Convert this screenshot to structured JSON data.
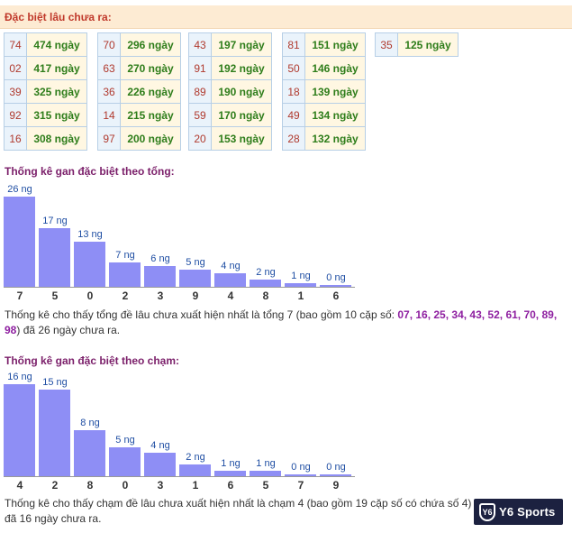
{
  "header": {
    "title": "Đặc biệt lâu chưa ra:"
  },
  "gan_groups": [
    [
      {
        "num": "74",
        "days": "474 ngày"
      },
      {
        "num": "02",
        "days": "417 ngày"
      },
      {
        "num": "39",
        "days": "325 ngày"
      },
      {
        "num": "92",
        "days": "315 ngày"
      },
      {
        "num": "16",
        "days": "308 ngày"
      }
    ],
    [
      {
        "num": "70",
        "days": "296 ngày"
      },
      {
        "num": "63",
        "days": "270 ngày"
      },
      {
        "num": "36",
        "days": "226 ngày"
      },
      {
        "num": "14",
        "days": "215 ngày"
      },
      {
        "num": "97",
        "days": "200 ngày"
      }
    ],
    [
      {
        "num": "43",
        "days": "197 ngày"
      },
      {
        "num": "91",
        "days": "192 ngày"
      },
      {
        "num": "89",
        "days": "190 ngày"
      },
      {
        "num": "59",
        "days": "170 ngày"
      },
      {
        "num": "20",
        "days": "153 ngày"
      }
    ],
    [
      {
        "num": "81",
        "days": "151 ngày"
      },
      {
        "num": "50",
        "days": "146 ngày"
      },
      {
        "num": "18",
        "days": "139 ngày"
      },
      {
        "num": "49",
        "days": "134 ngày"
      },
      {
        "num": "28",
        "days": "132 ngày"
      }
    ],
    [
      {
        "num": "35",
        "days": "125 ngày"
      }
    ]
  ],
  "sum_section": {
    "title": "Thống kê gan đặc biệt theo tổng:",
    "desc_prefix": "Thống kê cho thấy tổng đề lâu chưa xuất hiện nhất là tổng 7 (bao gồm 10 cặp số: ",
    "desc_pairs": "07, 16, 25, 34, 43, 52, 61, 70, 89, 98",
    "desc_suffix": ") đã 26 ngày chưa ra."
  },
  "touch_section": {
    "title": "Thống kê gan đặc biệt theo chạm:",
    "desc": "Thống kê cho thấy chạm đề lâu chưa xuất hiện nhất là chạm 4 (bao gồm 19 cặp số có chứa số 4) đã 16 ngày chưa ra."
  },
  "chart_data": [
    {
      "type": "bar",
      "title": "Thống kê gan đặc biệt theo tổng:",
      "categories": [
        "7",
        "5",
        "0",
        "2",
        "3",
        "9",
        "4",
        "8",
        "1",
        "6"
      ],
      "values": [
        26,
        17,
        13,
        7,
        6,
        5,
        4,
        2,
        1,
        0
      ],
      "value_labels": [
        "26 ng",
        "17 ng",
        "13 ng",
        "7 ng",
        "6 ng",
        "5 ng",
        "4 ng",
        "2 ng",
        "1 ng",
        "0 ng"
      ],
      "ylim": [
        0,
        26
      ],
      "grid": false,
      "bar_color": "#8e8ef5"
    },
    {
      "type": "bar",
      "title": "Thống kê gan đặc biệt theo chạm:",
      "categories": [
        "4",
        "2",
        "8",
        "0",
        "3",
        "1",
        "6",
        "5",
        "7",
        "9"
      ],
      "values": [
        16,
        15,
        8,
        5,
        4,
        2,
        1,
        1,
        0,
        0
      ],
      "value_labels": [
        "16 ng",
        "15 ng",
        "8 ng",
        "5 ng",
        "4 ng",
        "2 ng",
        "1 ng",
        "1 ng",
        "0 ng",
        "0 ng"
      ],
      "ylim": [
        0,
        16
      ],
      "grid": false,
      "bar_color": "#8e8ef5"
    }
  ],
  "logo": {
    "text": "Y6 Sports",
    "shield": "Y6"
  },
  "colors": {
    "header_bg": "#fdebd3",
    "header_text": "#c0392b",
    "section_title": "#7b1f6a",
    "num_text": "#b03a2e",
    "days_text": "#2e7d1a",
    "pairs_text": "#8e1fa0"
  }
}
